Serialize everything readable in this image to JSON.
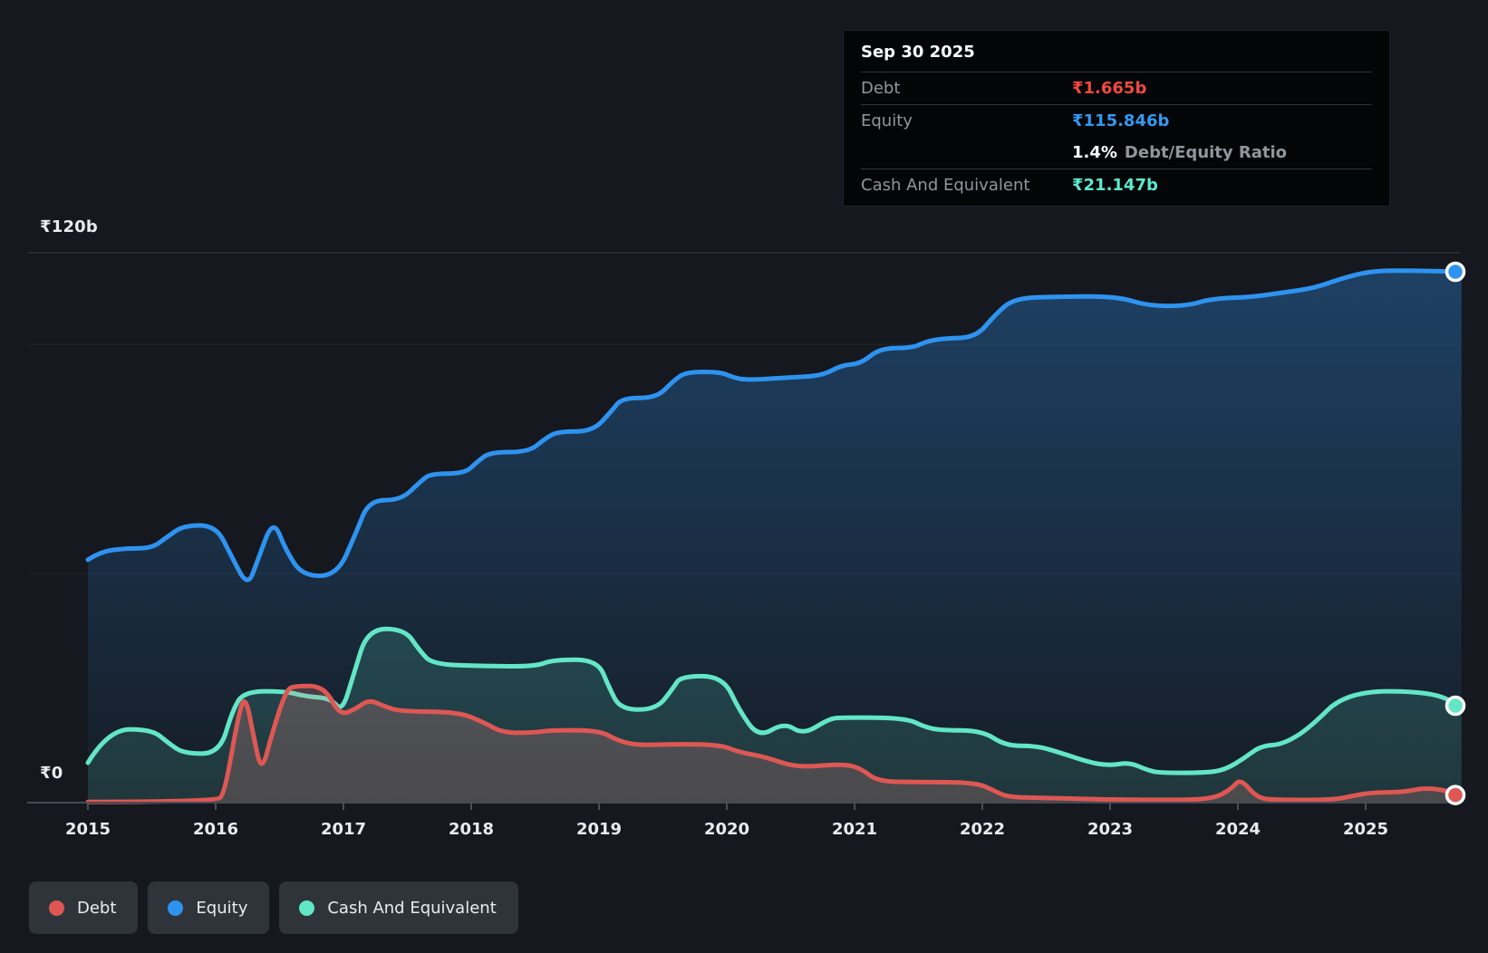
{
  "colors": {
    "debt": "#de5753",
    "equity": "#2e93f0",
    "cash": "#63e6c6",
    "debt_value_text": "#ef4a41",
    "equity_value_text": "#3399f0",
    "cash_value_text": "#5debcf",
    "grid_major": "rgba(255,255,255,0.10)",
    "grid_minor": "rgba(255,255,255,0.05)",
    "axis_line": "#454b54"
  },
  "tooltip": {
    "date": "Sep 30 2025",
    "debt_label": "Debt",
    "debt_value": "₹1.665b",
    "equity_label": "Equity",
    "equity_value": "₹115.846b",
    "ratio_value": "1.4%",
    "ratio_label": "Debt/Equity Ratio",
    "cash_label": "Cash And Equivalent",
    "cash_value": "₹21.147b"
  },
  "axis": {
    "y_top_label": "₹120b",
    "y_zero_label": "₹0"
  },
  "legend": {
    "items": [
      {
        "label": "Debt",
        "color_key": "debt"
      },
      {
        "label": "Equity",
        "color_key": "equity"
      },
      {
        "label": "Cash And Equivalent",
        "color_key": "cash"
      }
    ]
  },
  "chart_data": {
    "type": "area",
    "title": "Debt, Equity and Cash history (₹ billions)",
    "x_unit": "year",
    "x_range": [
      2015,
      2025.75
    ],
    "ylim": [
      0,
      120
    ],
    "y_gridline_labels": [
      {
        "value": 120,
        "label": "₹120b"
      },
      {
        "value": 0,
        "label": "₹0"
      }
    ],
    "y_minor_gridlines": [
      100,
      50
    ],
    "x_ticks": [
      "2015",
      "2016",
      "2017",
      "2018",
      "2019",
      "2020",
      "2021",
      "2022",
      "2023",
      "2024",
      "2025"
    ],
    "end_date": "Sep 30 2025",
    "series": [
      {
        "name": "Equity",
        "color_key": "equity",
        "end_value": 115.846,
        "points": [
          [
            2015.0,
            53
          ],
          [
            2015.1,
            54.8
          ],
          [
            2015.3,
            55.5
          ],
          [
            2015.5,
            55.5
          ],
          [
            2015.62,
            58
          ],
          [
            2015.75,
            60.5
          ],
          [
            2016.0,
            60.5
          ],
          [
            2016.12,
            54
          ],
          [
            2016.25,
            47
          ],
          [
            2016.33,
            53
          ],
          [
            2016.45,
            62
          ],
          [
            2016.55,
            55
          ],
          [
            2016.68,
            49.5
          ],
          [
            2016.95,
            49.5
          ],
          [
            2017.1,
            59
          ],
          [
            2017.2,
            66
          ],
          [
            2017.45,
            66
          ],
          [
            2017.6,
            70
          ],
          [
            2017.68,
            71.8
          ],
          [
            2017.95,
            71.8
          ],
          [
            2018.05,
            74.5
          ],
          [
            2018.15,
            76.5
          ],
          [
            2018.45,
            76.5
          ],
          [
            2018.58,
            79.5
          ],
          [
            2018.68,
            81
          ],
          [
            2018.95,
            81
          ],
          [
            2019.1,
            85.5
          ],
          [
            2019.18,
            88.3
          ],
          [
            2019.45,
            88.3
          ],
          [
            2019.58,
            92
          ],
          [
            2019.68,
            94
          ],
          [
            2019.95,
            94
          ],
          [
            2020.05,
            92.8
          ],
          [
            2020.15,
            92.2
          ],
          [
            2020.5,
            92.8
          ],
          [
            2020.75,
            93.2
          ],
          [
            2020.9,
            95.5
          ],
          [
            2021.05,
            95.8
          ],
          [
            2021.2,
            99.2
          ],
          [
            2021.45,
            99.2
          ],
          [
            2021.55,
            100.5
          ],
          [
            2021.68,
            101.3
          ],
          [
            2021.95,
            101.5
          ],
          [
            2022.1,
            106.5
          ],
          [
            2022.25,
            110.1
          ],
          [
            2022.6,
            110.4
          ],
          [
            2023.05,
            110.5
          ],
          [
            2023.3,
            108.4
          ],
          [
            2023.6,
            108.4
          ],
          [
            2023.8,
            110
          ],
          [
            2024.1,
            110.3
          ],
          [
            2024.35,
            111.3
          ],
          [
            2024.6,
            112.3
          ],
          [
            2024.8,
            114.3
          ],
          [
            2025.05,
            116.1
          ],
          [
            2025.4,
            116.1
          ],
          [
            2025.75,
            115.846
          ]
        ]
      },
      {
        "name": "Cash And Equivalent",
        "color_key": "cash",
        "end_value": 21.147,
        "points": [
          [
            2015.0,
            8.7
          ],
          [
            2015.16,
            16
          ],
          [
            2015.5,
            16
          ],
          [
            2015.63,
            13
          ],
          [
            2015.75,
            10.7
          ],
          [
            2016.03,
            10.7
          ],
          [
            2016.13,
            20
          ],
          [
            2016.22,
            24.3
          ],
          [
            2016.55,
            24.3
          ],
          [
            2016.7,
            23.2
          ],
          [
            2016.9,
            22.8
          ],
          [
            2016.99,
            19.8
          ],
          [
            2017.08,
            28
          ],
          [
            2017.19,
            37.9
          ],
          [
            2017.48,
            37.9
          ],
          [
            2017.6,
            33
          ],
          [
            2017.7,
            30.2
          ],
          [
            2018.1,
            29.8
          ],
          [
            2018.5,
            29.7
          ],
          [
            2018.64,
            31.2
          ],
          [
            2018.99,
            31.2
          ],
          [
            2019.08,
            25
          ],
          [
            2019.17,
            20.3
          ],
          [
            2019.45,
            20.3
          ],
          [
            2019.58,
            25
          ],
          [
            2019.64,
            27.6
          ],
          [
            2019.97,
            27.6
          ],
          [
            2020.1,
            20
          ],
          [
            2020.25,
            14.2
          ],
          [
            2020.45,
            17.5
          ],
          [
            2020.6,
            14.8
          ],
          [
            2020.8,
            18.3
          ],
          [
            2020.9,
            18.6
          ],
          [
            2021.4,
            18.5
          ],
          [
            2021.55,
            16.5
          ],
          [
            2021.67,
            15.8
          ],
          [
            2022.0,
            15.7
          ],
          [
            2022.18,
            12.4
          ],
          [
            2022.42,
            12.4
          ],
          [
            2022.6,
            11
          ],
          [
            2022.85,
            8.7
          ],
          [
            2023.0,
            8.1
          ],
          [
            2023.15,
            8.8
          ],
          [
            2023.3,
            7
          ],
          [
            2023.4,
            6.5
          ],
          [
            2023.75,
            6.5
          ],
          [
            2023.9,
            7.2
          ],
          [
            2024.05,
            9.7
          ],
          [
            2024.18,
            12.4
          ],
          [
            2024.35,
            12.7
          ],
          [
            2024.55,
            16
          ],
          [
            2024.85,
            24.3
          ],
          [
            2025.5,
            24.3
          ],
          [
            2025.75,
            21.147
          ]
        ]
      },
      {
        "name": "Debt",
        "color_key": "debt",
        "end_value": 1.665,
        "points": [
          [
            2015.0,
            0.15
          ],
          [
            2016.0,
            0.15
          ],
          [
            2016.07,
            2
          ],
          [
            2016.17,
            18
          ],
          [
            2016.23,
            23.9
          ],
          [
            2016.3,
            14
          ],
          [
            2016.36,
            6.5
          ],
          [
            2016.44,
            15
          ],
          [
            2016.55,
            24.5
          ],
          [
            2016.62,
            25.5
          ],
          [
            2016.85,
            25.4
          ],
          [
            2016.97,
            19
          ],
          [
            2017.1,
            20.5
          ],
          [
            2017.2,
            22.5
          ],
          [
            2017.32,
            21
          ],
          [
            2017.45,
            19.9
          ],
          [
            2017.9,
            19.8
          ],
          [
            2018.1,
            17.5
          ],
          [
            2018.25,
            15.2
          ],
          [
            2018.5,
            15.3
          ],
          [
            2018.62,
            15.8
          ],
          [
            2019.0,
            15.8
          ],
          [
            2019.15,
            13.5
          ],
          [
            2019.3,
            12.5
          ],
          [
            2019.6,
            12.8
          ],
          [
            2019.95,
            12.6
          ],
          [
            2020.1,
            11
          ],
          [
            2020.3,
            10
          ],
          [
            2020.55,
            7.6
          ],
          [
            2020.9,
            8.5
          ],
          [
            2021.05,
            7.5
          ],
          [
            2021.18,
            4.6
          ],
          [
            2021.5,
            4.5
          ],
          [
            2021.95,
            4.4
          ],
          [
            2022.1,
            2.5
          ],
          [
            2022.2,
            1.2
          ],
          [
            2022.5,
            1
          ],
          [
            2022.8,
            0.8
          ],
          [
            2023.0,
            0.7
          ],
          [
            2023.4,
            0.6
          ],
          [
            2023.8,
            0.7
          ],
          [
            2023.95,
            3
          ],
          [
            2024.02,
            5.3
          ],
          [
            2024.15,
            1
          ],
          [
            2024.3,
            0.6
          ],
          [
            2024.75,
            0.6
          ],
          [
            2024.9,
            1.5
          ],
          [
            2025.05,
            2.2
          ],
          [
            2025.3,
            2.3
          ],
          [
            2025.45,
            3.2
          ],
          [
            2025.6,
            2.8
          ],
          [
            2025.75,
            1.665
          ]
        ]
      }
    ]
  }
}
